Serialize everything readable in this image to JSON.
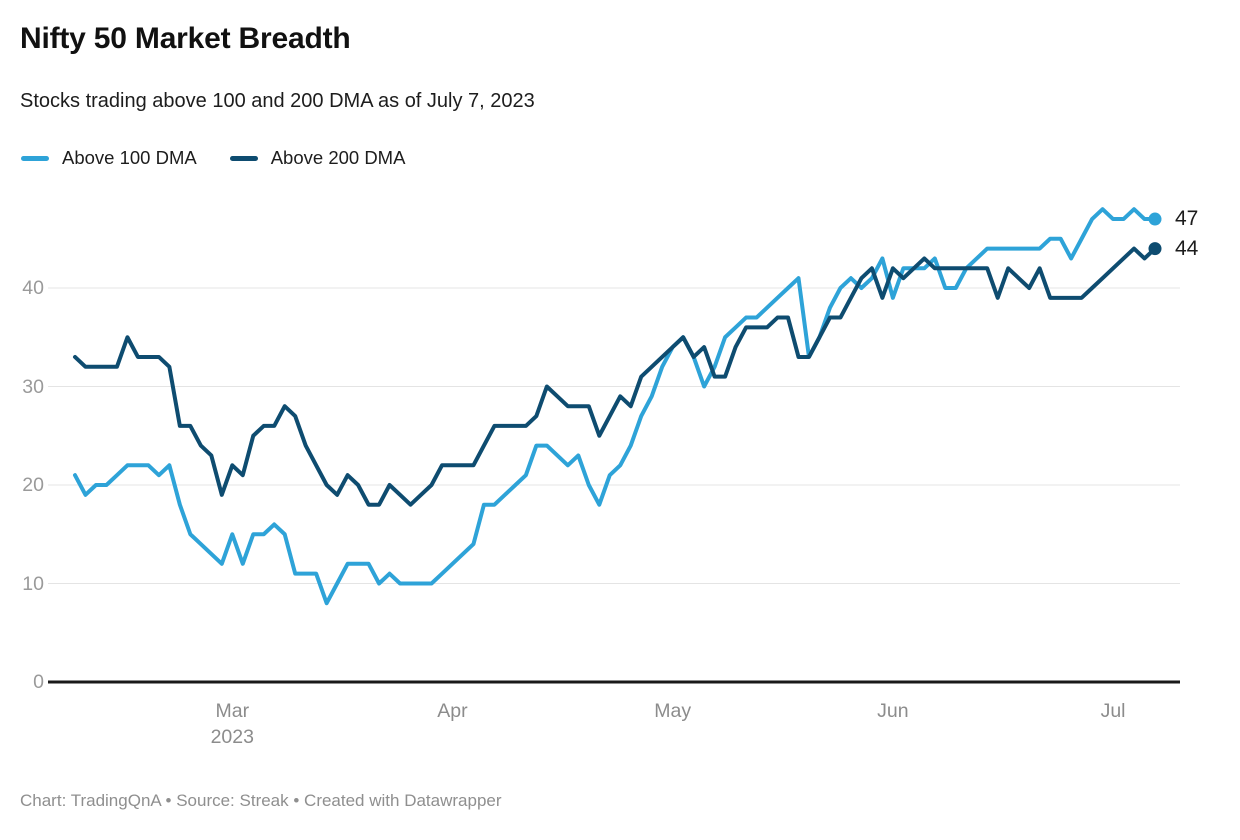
{
  "header": {
    "title": "Nifty 50 Market Breadth",
    "subtitle": "Stocks trading above 100 and 200 DMA as of July 7, 2023"
  },
  "legend": [
    {
      "label": "Above 100 DMA",
      "color": "#2EA3D8"
    },
    {
      "label": "Above 200 DMA",
      "color": "#0E4C70"
    }
  ],
  "footer": {
    "credit": "Chart: TradingQnA • Source: Streak • Created with Datawrapper"
  },
  "colors": {
    "gridline": "#e4e4e4",
    "baseline": "#1a1a1a",
    "axis_label": "#9a9a9a",
    "end_label": "#1c1c1c"
  },
  "chart_data": {
    "type": "line",
    "title": "Nifty 50 Market Breadth",
    "subtitle": "Stocks trading above 100 and 200 DMA as of July 7, 2023",
    "ylim": [
      0,
      50
    ],
    "y_ticks": [
      0,
      10,
      20,
      30,
      40
    ],
    "grid": true,
    "legend_position": "top-left",
    "x_ticks": [
      {
        "label": "Mar",
        "sublabel": "2023",
        "index": 15
      },
      {
        "label": "Apr",
        "sublabel": "",
        "index": 36
      },
      {
        "label": "May",
        "sublabel": "",
        "index": 57
      },
      {
        "label": "Jun",
        "sublabel": "",
        "index": 78
      },
      {
        "label": "Jul",
        "sublabel": "",
        "index": 99
      }
    ],
    "series": [
      {
        "name": "Above 100 DMA",
        "color": "#2EA3D8",
        "end_label": "47",
        "values": [
          21,
          19,
          20,
          20,
          21,
          22,
          22,
          22,
          21,
          22,
          18,
          15,
          14,
          13,
          12,
          15,
          12,
          15,
          15,
          16,
          15,
          11,
          11,
          11,
          8,
          10,
          12,
          12,
          12,
          10,
          11,
          10,
          10,
          10,
          10,
          11,
          12,
          13,
          14,
          18,
          18,
          19,
          20,
          21,
          24,
          24,
          23,
          22,
          23,
          20,
          18,
          21,
          22,
          24,
          27,
          29,
          32,
          34,
          35,
          33,
          30,
          32,
          35,
          36,
          37,
          37,
          38,
          39,
          40,
          41,
          33,
          35,
          38,
          40,
          41,
          40,
          41,
          43,
          39,
          42,
          42,
          42,
          43,
          40,
          40,
          42,
          43,
          44,
          44,
          44,
          44,
          44,
          44,
          45,
          45,
          43,
          45,
          47,
          48,
          47,
          47,
          48,
          47,
          47
        ]
      },
      {
        "name": "Above 200 DMA",
        "color": "#0E4C70",
        "end_label": "44",
        "values": [
          33,
          32,
          32,
          32,
          32,
          35,
          33,
          33,
          33,
          32,
          26,
          26,
          24,
          23,
          19,
          22,
          21,
          25,
          26,
          26,
          28,
          27,
          24,
          22,
          20,
          19,
          21,
          20,
          18,
          18,
          20,
          19,
          18,
          19,
          20,
          22,
          22,
          22,
          22,
          24,
          26,
          26,
          26,
          26,
          27,
          30,
          29,
          28,
          28,
          28,
          25,
          27,
          29,
          28,
          31,
          32,
          33,
          34,
          35,
          33,
          34,
          31,
          31,
          34,
          36,
          36,
          36,
          37,
          37,
          33,
          33,
          35,
          37,
          37,
          39,
          41,
          42,
          39,
          42,
          41,
          42,
          43,
          42,
          42,
          42,
          42,
          42,
          42,
          39,
          42,
          41,
          40,
          42,
          39,
          39,
          39,
          39,
          40,
          41,
          42,
          43,
          44,
          43,
          44
        ]
      }
    ]
  }
}
